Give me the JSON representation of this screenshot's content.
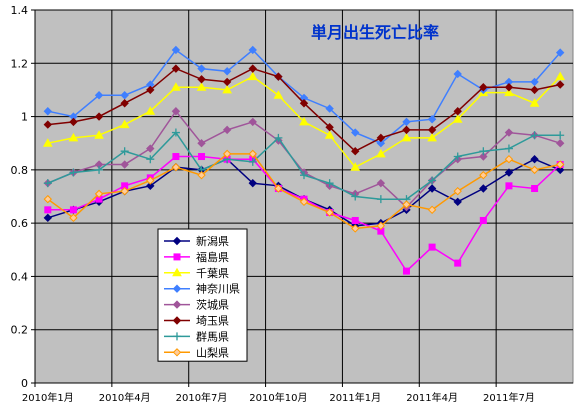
{
  "chart_data": {
    "type": "line",
    "title": "単月出生死亡比率",
    "title_color": "#0033CC",
    "plot_background": "#C0C0C0",
    "categories": [
      "2010年1月",
      "",
      "",
      "2010年4月",
      "",
      "",
      "2010年7月",
      "",
      "",
      "2010年10月",
      "",
      "",
      "2011年1月",
      "",
      "",
      "2011年4月",
      "",
      "",
      "2011年7月",
      "",
      ""
    ],
    "ylim": [
      0,
      1.4
    ],
    "yticks": [
      0,
      0.2,
      0.4,
      0.6,
      0.8,
      1,
      1.2,
      1.4
    ],
    "grid": true,
    "legend": "inside-bottom-left",
    "series": [
      {
        "name": "新潟県",
        "color": "#000080",
        "marker": "diamond",
        "values": [
          0.62,
          0.65,
          0.68,
          0.72,
          0.74,
          0.81,
          0.8,
          0.84,
          0.75,
          0.74,
          0.69,
          0.65,
          0.59,
          0.6,
          0.65,
          0.73,
          0.68,
          0.73,
          0.79,
          0.84,
          0.8
        ]
      },
      {
        "name": "福島県",
        "color": "#FF00FF",
        "marker": "square",
        "values": [
          0.65,
          0.65,
          0.69,
          0.74,
          0.77,
          0.85,
          0.85,
          0.84,
          0.84,
          0.73,
          0.69,
          0.64,
          0.61,
          0.57,
          0.42,
          0.51,
          0.45,
          0.61,
          0.74,
          0.73,
          0.82
        ]
      },
      {
        "name": "千葉県",
        "color": "#FFFF00",
        "marker": "triangle",
        "values": [
          0.9,
          0.92,
          0.93,
          0.97,
          1.02,
          1.11,
          1.11,
          1.1,
          1.15,
          1.08,
          0.98,
          0.93,
          0.81,
          0.86,
          0.92,
          0.92,
          0.99,
          1.09,
          1.09,
          1.05,
          1.15
        ]
      },
      {
        "name": "神奈川県",
        "color": "#3F7FFF",
        "marker": "diamond",
        "values": [
          1.02,
          1.0,
          1.08,
          1.08,
          1.12,
          1.25,
          1.18,
          1.17,
          1.25,
          1.15,
          1.07,
          1.03,
          0.94,
          0.9,
          0.98,
          0.99,
          1.16,
          1.1,
          1.13,
          1.13,
          1.24
        ]
      },
      {
        "name": "茨城県",
        "color": "#A0559A",
        "marker": "diamond",
        "values": [
          0.75,
          0.79,
          0.82,
          0.82,
          0.88,
          1.02,
          0.9,
          0.95,
          0.98,
          0.91,
          0.79,
          0.74,
          0.71,
          0.75,
          0.66,
          0.76,
          0.84,
          0.85,
          0.94,
          0.93,
          0.9
        ]
      },
      {
        "name": "埼玉県",
        "color": "#800000",
        "marker": "diamond",
        "values": [
          0.97,
          0.98,
          1.0,
          1.05,
          1.1,
          1.18,
          1.14,
          1.13,
          1.18,
          1.15,
          1.05,
          0.96,
          0.87,
          0.92,
          0.95,
          0.95,
          1.02,
          1.11,
          1.11,
          1.1,
          1.12
        ]
      },
      {
        "name": "群馬県",
        "color": "#2E9A9A",
        "marker": "plus",
        "values": [
          0.75,
          0.79,
          0.8,
          0.87,
          0.84,
          0.94,
          0.8,
          0.84,
          0.83,
          0.92,
          0.78,
          0.75,
          0.7,
          0.69,
          0.69,
          0.76,
          0.85,
          0.87,
          0.88,
          0.93,
          0.93
        ]
      },
      {
        "name": "山梨県",
        "color": "#FF9900",
        "marker": "diamond",
        "marker_fill": "#FFCC99",
        "values": [
          0.69,
          0.62,
          0.71,
          0.72,
          0.76,
          0.81,
          0.78,
          0.86,
          0.86,
          0.73,
          0.68,
          0.64,
          0.58,
          0.59,
          0.67,
          0.65,
          0.72,
          0.78,
          0.84,
          0.8,
          0.82
        ]
      }
    ]
  }
}
